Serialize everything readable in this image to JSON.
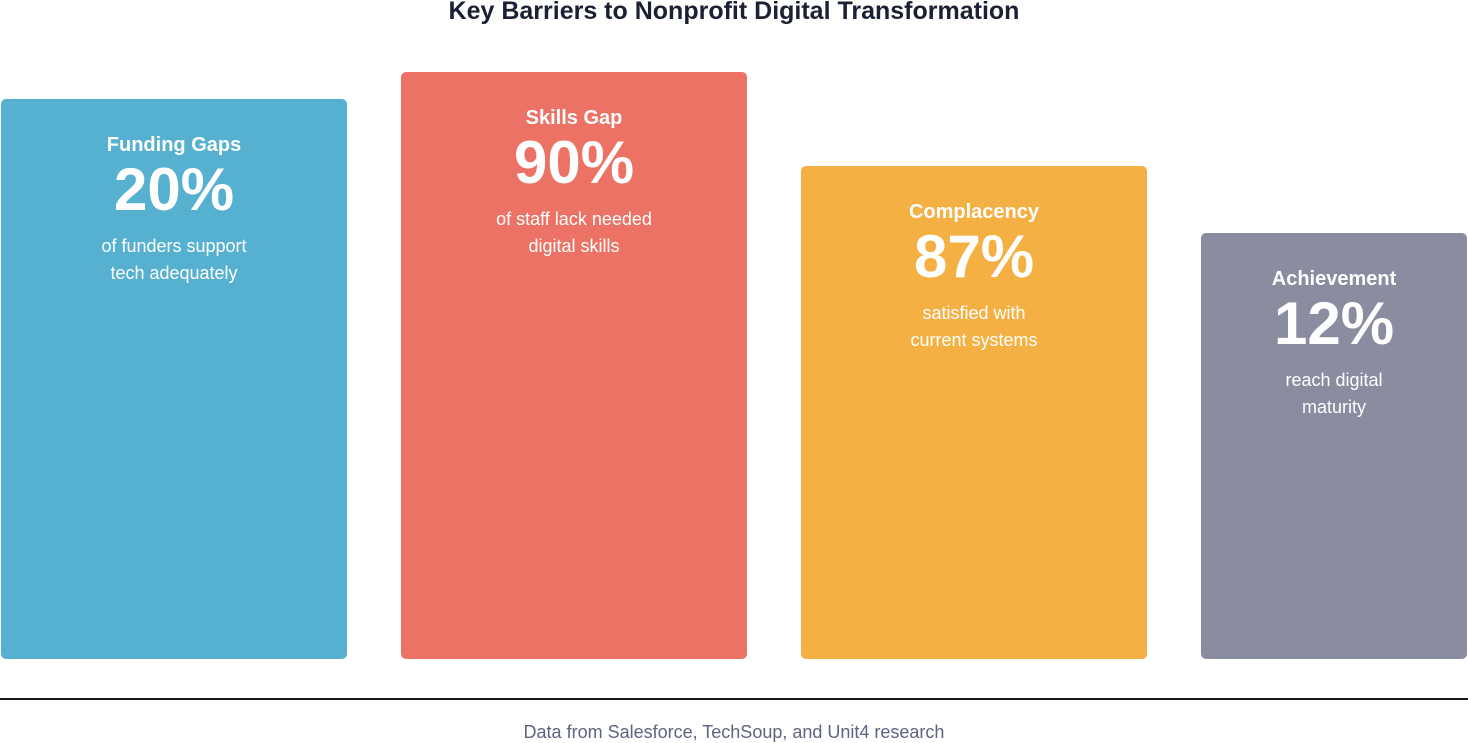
{
  "header": {
    "title": "Key Barriers to Nonprofit Digital Transformation"
  },
  "cards": [
    {
      "title": "Funding Gaps",
      "stat": "20%",
      "description": [
        "of funders support",
        "tech adequately"
      ]
    },
    {
      "title": "Skills Gap",
      "stat": "90%",
      "description": [
        "of staff lack needed",
        "digital skills"
      ]
    },
    {
      "title": "Complacency",
      "stat": "87%",
      "description": [
        "satisfied with",
        "current systems"
      ]
    },
    {
      "title": "Achievement",
      "stat": "12%",
      "description": [
        "reach digital",
        "maturity"
      ]
    }
  ],
  "footer": {
    "source": "Data from Salesforce, TechSoup, and Unit4 research"
  }
}
